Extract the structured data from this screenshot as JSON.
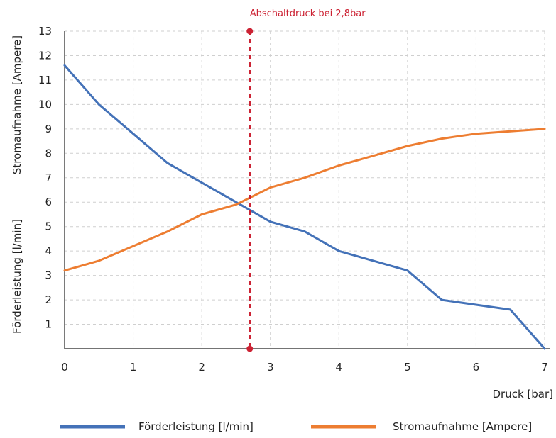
{
  "chart_data": {
    "type": "line",
    "title": "",
    "xlabel": "Druck [bar]",
    "ylabel": "Förderleistung [l/min]",
    "ylabel2": "Stromaufnahme [Ampere]",
    "xlim": [
      0,
      7
    ],
    "ylim": [
      0,
      13
    ],
    "x_ticks": [
      "0",
      "1",
      "2",
      "3",
      "4",
      "5",
      "6",
      "7"
    ],
    "y_ticks": [
      "1",
      "2",
      "3",
      "4",
      "5",
      "6",
      "7",
      "8",
      "9",
      "10",
      "11",
      "12",
      "13"
    ],
    "grid": true,
    "legend_position": "bottom",
    "series": [
      {
        "name": "Förderleistung [l/min]",
        "color": "#4472b8",
        "points": [
          [
            0,
            11.6
          ],
          [
            0.5,
            10.0
          ],
          [
            1.0,
            8.8
          ],
          [
            1.5,
            7.6
          ],
          [
            2.0,
            6.8
          ],
          [
            2.5,
            6.0
          ],
          [
            3.0,
            5.2
          ],
          [
            3.5,
            4.8
          ],
          [
            4.0,
            4.0
          ],
          [
            4.5,
            3.6
          ],
          [
            5.0,
            3.2
          ],
          [
            5.5,
            2.0
          ],
          [
            6.0,
            1.8
          ],
          [
            6.5,
            1.6
          ],
          [
            7.0,
            0.0
          ]
        ]
      },
      {
        "name": "Stromaufnahme [Ampere]",
        "color": "#ed7d31",
        "points": [
          [
            0,
            3.2
          ],
          [
            0.5,
            3.6
          ],
          [
            1.0,
            4.2
          ],
          [
            1.5,
            4.8
          ],
          [
            2.0,
            5.5
          ],
          [
            2.5,
            5.9
          ],
          [
            3.0,
            6.6
          ],
          [
            3.5,
            7.0
          ],
          [
            4.0,
            7.5
          ],
          [
            4.5,
            7.9
          ],
          [
            5.0,
            8.3
          ],
          [
            5.5,
            8.6
          ],
          [
            6.0,
            8.8
          ],
          [
            6.5,
            8.9
          ],
          [
            7.0,
            9.0
          ]
        ]
      }
    ],
    "annotations": [
      {
        "text": "Abschaltdruck bei 2,8bar",
        "x": 2.7,
        "color": "#cc2233"
      }
    ]
  }
}
